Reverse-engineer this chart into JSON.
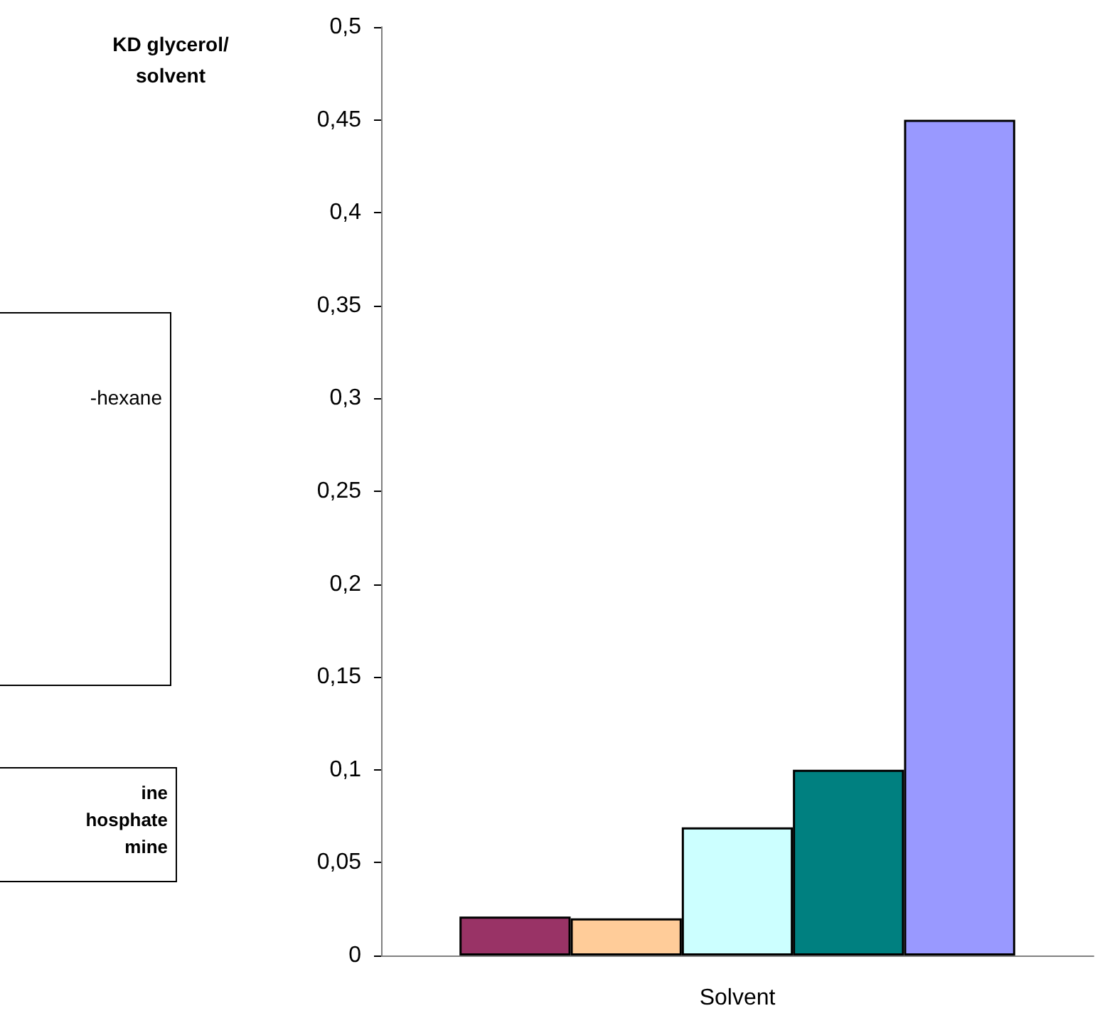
{
  "chart_data": {
    "type": "bar",
    "ylabel": "KD glycerol/ solvent",
    "categories": [
      "Solvent"
    ],
    "series": [
      {
        "color": "#993366",
        "values": [
          0.021
        ]
      },
      {
        "color": "#ffcc99",
        "values": [
          0.02
        ]
      },
      {
        "color": "#ccffff",
        "values": [
          0.069
        ]
      },
      {
        "color": "#008080",
        "values": [
          0.1
        ]
      },
      {
        "color": "#9999ff",
        "values": [
          0.45
        ]
      }
    ],
    "ylim": [
      0,
      0.5
    ],
    "yticks": [
      {
        "value": 0,
        "label": "0"
      },
      {
        "value": 0.05,
        "label": "0,05"
      },
      {
        "value": 0.1,
        "label": "0,1"
      },
      {
        "value": 0.15,
        "label": "0,15"
      },
      {
        "value": 0.2,
        "label": "0,2"
      },
      {
        "value": 0.25,
        "label": "0,25"
      },
      {
        "value": 0.3,
        "label": "0,3"
      },
      {
        "value": 0.35,
        "label": "0,35"
      },
      {
        "value": 0.4,
        "label": "0,4"
      },
      {
        "value": 0.45,
        "label": "0,45"
      },
      {
        "value": 0.5,
        "label": "0,5"
      }
    ],
    "annotations": [
      "-hexane",
      "ine\nhosphate\nmine"
    ],
    "grid": false
  }
}
